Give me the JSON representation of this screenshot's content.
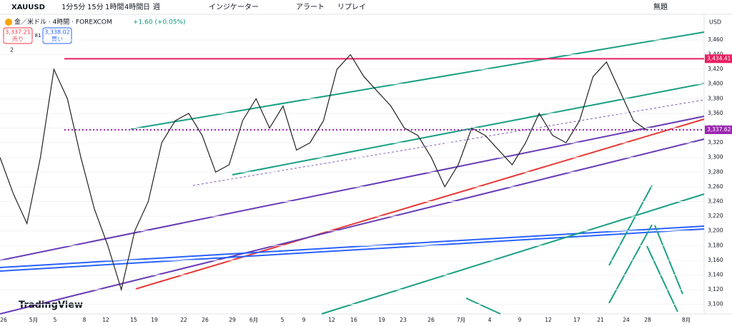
{
  "toolbar": {
    "symbol": "XAUUSD",
    "intervals": [
      "1分",
      "5分",
      "15分",
      "1時間",
      "4時間",
      "日",
      "週"
    ],
    "indicators": "インジケーター",
    "alert": "アラート",
    "replay": "リプレイ",
    "layout_name": "無題"
  },
  "legend": {
    "title": "金／米ドル · 4時間 · FOREXCOM",
    "change": "+1.60 (+0.05%)",
    "sell_price": "3,337.21",
    "sell": "売り",
    "spread": "81",
    "buy_price": "3,338.02",
    "buy": "買い",
    "indicator_count": "2"
  },
  "brand": "TradingView",
  "chart_data": {
    "type": "line",
    "currency": "USD",
    "x_labels": [
      "26",
      "5月",
      "5",
      "8",
      "12",
      "15",
      "19",
      "22",
      "26",
      "29",
      "6月",
      "5",
      "9",
      "12",
      "16",
      "19",
      "23",
      "26",
      "7月",
      "4",
      "9",
      "12",
      "17",
      "21",
      "24",
      "28",
      "8月"
    ],
    "series": [
      {
        "name": "XAUUSD",
        "color": "#222222",
        "values": [
          3300,
          3250,
          3210,
          3300,
          3420,
          3380,
          3300,
          3230,
          3180,
          3120,
          3200,
          3240,
          3320,
          3350,
          3360,
          3330,
          3280,
          3290,
          3350,
          3380,
          3340,
          3370,
          3310,
          3320,
          3350,
          3420,
          3440,
          3410,
          3390,
          3370,
          3340,
          3330,
          3300,
          3260,
          3290,
          3340,
          3330,
          3310,
          3290,
          3320,
          3360,
          3330,
          3320,
          3350,
          3410,
          3430,
          3390,
          3350,
          3337
        ]
      }
    ],
    "levels": [
      {
        "value": 3434.41,
        "label": "3,434.41",
        "color": "#e91e63"
      },
      {
        "value": 3337.62,
        "label": "3,337.62",
        "color": "#9c27b0"
      }
    ],
    "ylim": [
      3087,
      3493
    ],
    "yticks": [
      {
        "value": 3100,
        "label": "3,100"
      },
      {
        "value": 3120,
        "label": "3,120"
      },
      {
        "value": 3140,
        "label": "3,140"
      },
      {
        "value": 3160,
        "label": "3,160"
      },
      {
        "value": 3180,
        "label": "3,180"
      },
      {
        "value": 3200,
        "label": "3,200"
      },
      {
        "value": 3220,
        "label": "3,220"
      },
      {
        "value": 3240,
        "label": "3,240"
      },
      {
        "value": 3260,
        "label": "3,260"
      },
      {
        "value": 3280,
        "label": "3,280"
      },
      {
        "value": 3300,
        "label": "3,300"
      },
      {
        "value": 3320,
        "label": "3,320"
      },
      {
        "value": 3340,
        "label": "3,340"
      },
      {
        "value": 3360,
        "label": "3,360"
      },
      {
        "value": 3380,
        "label": "3,380"
      },
      {
        "value": 3400,
        "label": "3,400"
      },
      {
        "value": 3420,
        "label": "3,420"
      },
      {
        "value": 3440,
        "label": "3,440"
      },
      {
        "value": 3460,
        "label": "3,460"
      }
    ]
  }
}
